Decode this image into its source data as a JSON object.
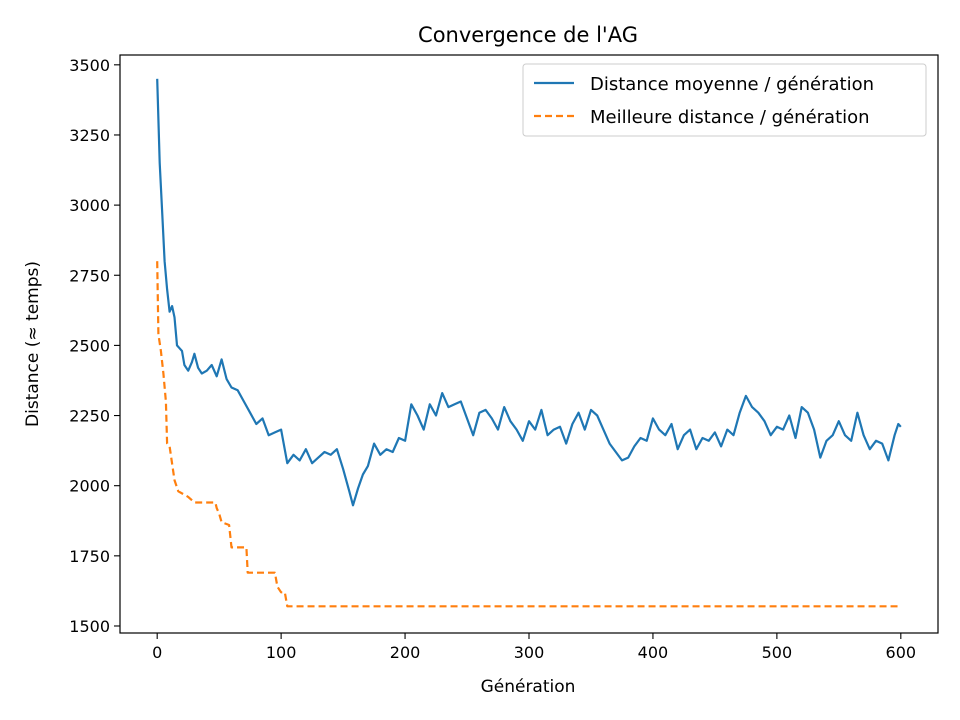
{
  "chart_data": {
    "type": "line",
    "title": "Convergence de l'AG",
    "xlabel": "Génération",
    "ylabel": "Distance (≈ temps)",
    "xlim": [
      -30,
      630
    ],
    "ylim": [
      1475,
      3535
    ],
    "xticks": [
      0,
      100,
      200,
      300,
      400,
      500,
      600
    ],
    "yticks": [
      1500,
      1750,
      2000,
      2250,
      2500,
      2750,
      3000,
      3250,
      3500
    ],
    "grid": false,
    "legend_position": "top-right",
    "series": [
      {
        "name": "Distance moyenne / génération",
        "color": "#1f77b4",
        "style": "solid",
        "x": [
          0,
          2,
          4,
          6,
          8,
          10,
          12,
          14,
          16,
          18,
          20,
          22,
          25,
          28,
          30,
          33,
          36,
          40,
          44,
          48,
          52,
          56,
          60,
          65,
          70,
          75,
          80,
          85,
          90,
          95,
          100,
          105,
          110,
          115,
          120,
          125,
          130,
          135,
          140,
          145,
          150,
          155,
          158,
          162,
          166,
          170,
          175,
          180,
          185,
          190,
          195,
          200,
          205,
          210,
          215,
          220,
          225,
          230,
          235,
          240,
          245,
          250,
          255,
          260,
          265,
          270,
          275,
          280,
          285,
          290,
          295,
          300,
          305,
          310,
          315,
          320,
          325,
          330,
          335,
          340,
          345,
          350,
          355,
          360,
          365,
          370,
          375,
          380,
          385,
          390,
          395,
          400,
          405,
          410,
          415,
          420,
          425,
          430,
          435,
          440,
          445,
          450,
          455,
          460,
          465,
          470,
          475,
          480,
          485,
          490,
          495,
          500,
          505,
          510,
          515,
          520,
          525,
          530,
          535,
          540,
          545,
          550,
          555,
          560,
          565,
          570,
          575,
          580,
          585,
          590,
          595,
          598,
          600
        ],
        "values": [
          3450,
          3150,
          2980,
          2800,
          2700,
          2620,
          2640,
          2600,
          2500,
          2490,
          2480,
          2430,
          2410,
          2440,
          2470,
          2420,
          2400,
          2410,
          2430,
          2390,
          2450,
          2380,
          2350,
          2340,
          2300,
          2260,
          2220,
          2240,
          2180,
          2190,
          2200,
          2080,
          2110,
          2090,
          2130,
          2080,
          2100,
          2120,
          2110,
          2130,
          2060,
          1980,
          1930,
          1990,
          2040,
          2070,
          2150,
          2110,
          2130,
          2120,
          2170,
          2160,
          2290,
          2250,
          2200,
          2290,
          2250,
          2330,
          2280,
          2290,
          2300,
          2240,
          2180,
          2260,
          2270,
          2240,
          2200,
          2280,
          2230,
          2200,
          2160,
          2230,
          2200,
          2270,
          2180,
          2200,
          2210,
          2150,
          2220,
          2260,
          2200,
          2270,
          2250,
          2200,
          2150,
          2120,
          2090,
          2100,
          2140,
          2170,
          2160,
          2240,
          2200,
          2180,
          2220,
          2130,
          2180,
          2200,
          2130,
          2170,
          2160,
          2190,
          2140,
          2200,
          2180,
          2260,
          2320,
          2280,
          2260,
          2230,
          2180,
          2210,
          2200,
          2250,
          2170,
          2280,
          2260,
          2200,
          2100,
          2160,
          2180,
          2230,
          2180,
          2160,
          2260,
          2180,
          2130,
          2160,
          2150,
          2090,
          2180,
          2220,
          2210
        ]
      },
      {
        "name": "Meilleure distance / génération",
        "color": "#ff7f0e",
        "style": "dashed",
        "x": [
          0,
          1,
          3,
          5,
          7,
          8,
          10,
          14,
          17,
          25,
          30,
          40,
          47,
          48,
          50,
          52,
          58,
          60,
          65,
          72,
          73,
          80,
          85,
          95,
          97,
          100,
          103,
          105,
          110,
          150,
          200,
          300,
          400,
          500,
          600
        ],
        "values": [
          2800,
          2540,
          2480,
          2400,
          2300,
          2150,
          2140,
          2020,
          1980,
          1960,
          1940,
          1940,
          1940,
          1920,
          1900,
          1870,
          1860,
          1780,
          1780,
          1780,
          1690,
          1690,
          1690,
          1690,
          1640,
          1620,
          1620,
          1570,
          1570,
          1570,
          1570,
          1570,
          1570,
          1570,
          1570
        ]
      }
    ]
  }
}
